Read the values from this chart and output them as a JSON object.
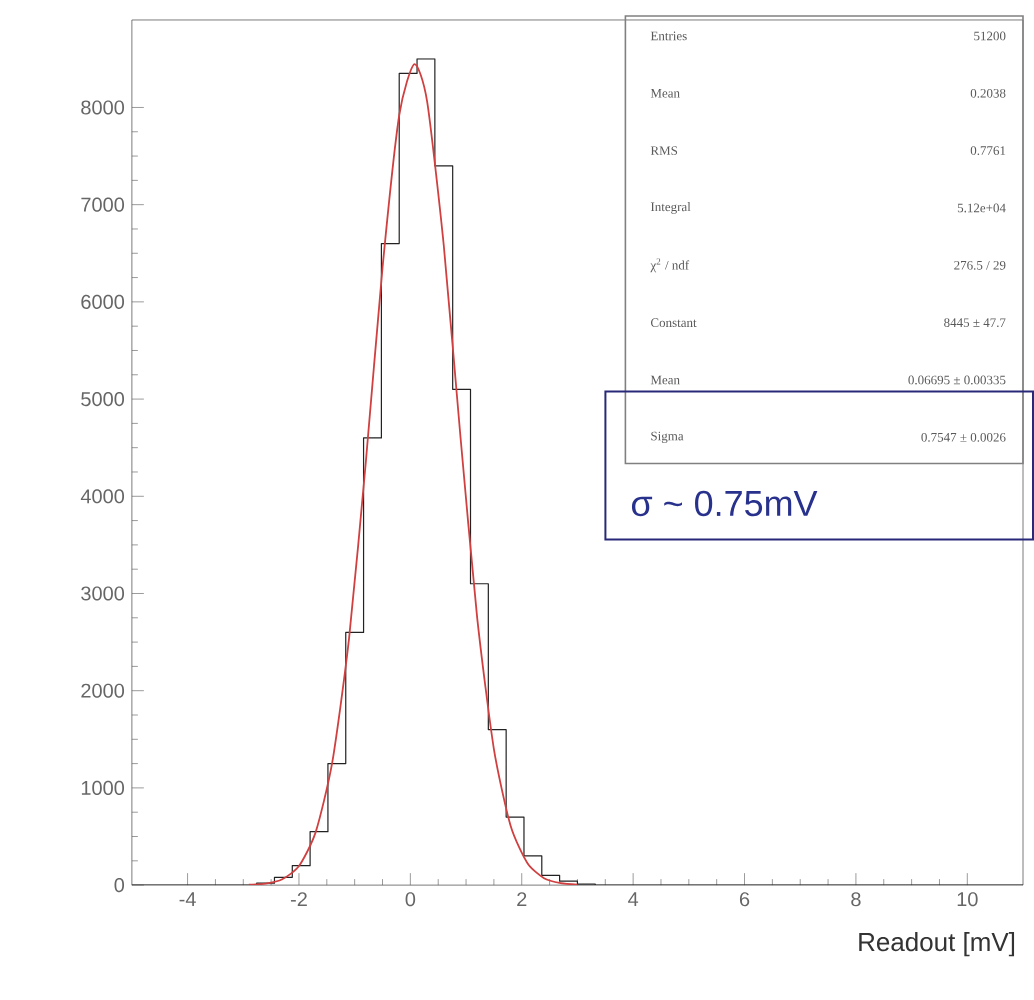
{
  "chart_data": {
    "type": "histogram",
    "xlabel": "Readout [mV]",
    "bins": [
      -5,
      -4.68,
      -4.36,
      -4.04,
      -3.72,
      -3.4,
      -3.08,
      -2.76,
      -2.44,
      -2.12,
      -1.8,
      -1.48,
      -1.16,
      -0.84,
      -0.52,
      -0.2,
      0.12,
      0.44,
      0.76,
      1.08,
      1.4,
      1.72,
      2.04,
      2.36,
      2.68,
      3,
      3.32,
      3.64,
      3.96,
      4.28,
      4.6,
      4.92,
      5.24,
      5.56,
      5.88,
      6.2,
      6.52,
      6.84,
      7.16,
      7.48,
      7.8,
      8.12,
      8.44,
      8.76,
      9.08,
      9.4,
      9.72,
      10.04,
      10.36,
      10.68,
      11
    ],
    "values": [
      0,
      0,
      0,
      0,
      0,
      0,
      0,
      20,
      80,
      200,
      550,
      1250,
      2600,
      4600,
      6600,
      8350,
      8500,
      7400,
      5100,
      3100,
      1600,
      700,
      300,
      100,
      40,
      10,
      0,
      0,
      0,
      0,
      0,
      0,
      0,
      0,
      0,
      0,
      0,
      0,
      0,
      0,
      0,
      0,
      0,
      0,
      0,
      0,
      0,
      0,
      0,
      0
    ],
    "color": "#222222",
    "series": [
      {
        "type": "line",
        "color": "#d04040",
        "x": [
          -2.9,
          -2.6,
          -2.3,
          -2.0,
          -1.7,
          -1.4,
          -1.1,
          -0.8,
          -0.5,
          -0.2,
          0.07,
          0.3,
          0.6,
          0.9,
          1.2,
          1.5,
          1.8,
          2.1,
          2.4,
          2.7,
          3.0
        ],
        "values": [
          4,
          15,
          60,
          196,
          545,
          1270,
          2540,
          4350,
          6350,
          7920,
          8445,
          8065,
          6580,
          4610,
          2750,
          1400,
          610,
          228,
          71,
          20,
          5
        ]
      }
    ],
    "xlim": [
      -5,
      11
    ],
    "ylim": [
      0,
      8900
    ],
    "xticks": [
      -4,
      -2,
      0,
      2,
      4,
      6,
      8,
      10
    ],
    "yticks": [
      0,
      1000,
      2000,
      3000,
      4000,
      5000,
      6000,
      7000,
      8000
    ],
    "annotations": [
      "Entries",
      "51200",
      "Mean",
      "0.2038",
      "RMS",
      "0.7761",
      "Integral",
      "5.12e+04",
      "χ$^{2}$ / ndf",
      "276.5 / 29",
      "Constant",
      "8445 ± 47.7",
      "Mean",
      "0.06695 ± 0.00335",
      "Sigma",
      "0.7547 ± 0.0026",
      "σ ~ 0.75mV"
    ]
  }
}
